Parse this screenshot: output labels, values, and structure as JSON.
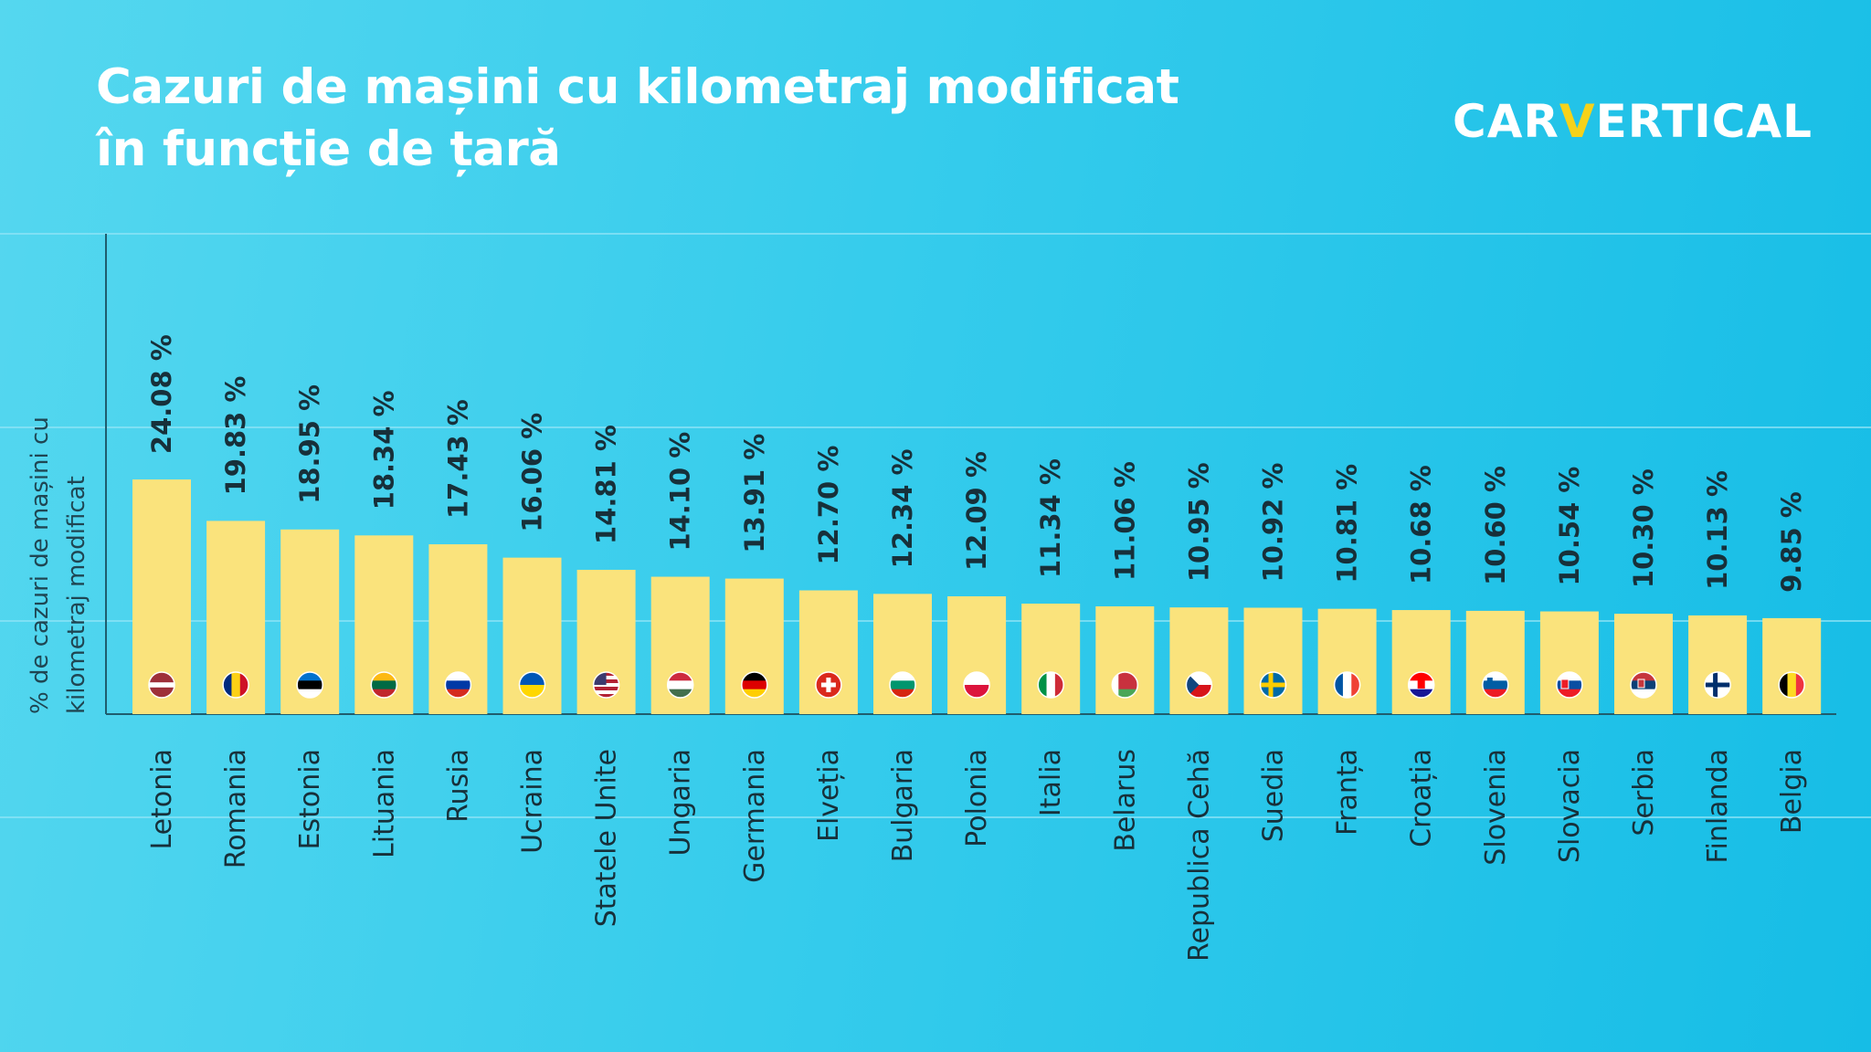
{
  "header": {
    "title_line1": "Cazuri de mașini cu kilometraj modificat",
    "title_line2": "în funcție de țară",
    "logo_left": "CAR",
    "logo_v": "V",
    "logo_right": "ERTICAL"
  },
  "colors": {
    "bar": "#fae37c",
    "background": "#36ccec",
    "logo_accent": "#f6d21a"
  },
  "chart_data": {
    "type": "bar",
    "title": "Cazuri de mașini cu kilometraj modificat în funcție de țară",
    "xlabel": "",
    "ylabel_line1": "% de cazuri de mașini cu",
    "ylabel_line2": "kilometraj modificat",
    "ylim": [
      0,
      50
    ],
    "categories": [
      "Letonia",
      "Romania",
      "Estonia",
      "Lituania",
      "Rusia",
      "Ucraina",
      "Statele Unite",
      "Ungaria",
      "Germania",
      "Elveția",
      "Bulgaria",
      "Polonia",
      "Italia",
      "Belarus",
      "Republica Cehă",
      "Suedia",
      "Franța",
      "Croația",
      "Slovenia",
      "Slovacia",
      "Serbia",
      "Finlanda",
      "Belgia"
    ],
    "values": [
      24.08,
      19.83,
      18.95,
      18.34,
      17.43,
      16.06,
      14.81,
      14.1,
      13.91,
      12.7,
      12.34,
      12.09,
      11.34,
      11.06,
      10.95,
      10.92,
      10.81,
      10.68,
      10.6,
      10.54,
      10.3,
      10.13,
      9.85
    ],
    "value_labels": [
      "24.08 %",
      "19.83 %",
      "18.95 %",
      "18.34 %",
      "17.43 %",
      "16.06 %",
      "14.81 %",
      "14.10 %",
      "13.91 %",
      "12.70 %",
      "12.34 %",
      "12.09 %",
      "11.34 %",
      "11.06 %",
      "10.95 %",
      "10.92 %",
      "10.81 %",
      "10.68 %",
      "10.60 %",
      "10.54 %",
      "10.30 %",
      "10.13 %",
      "9.85 %"
    ],
    "flag_icons": [
      "latvia-flag-icon",
      "romania-flag-icon",
      "estonia-flag-icon",
      "lithuania-flag-icon",
      "russia-flag-icon",
      "ukraine-flag-icon",
      "usa-flag-icon",
      "hungary-flag-icon",
      "germany-flag-icon",
      "switzerland-flag-icon",
      "bulgaria-flag-icon",
      "poland-flag-icon",
      "italy-flag-icon",
      "belarus-flag-icon",
      "czechia-flag-icon",
      "sweden-flag-icon",
      "france-flag-icon",
      "croatia-flag-icon",
      "slovenia-flag-icon",
      "slovakia-flag-icon",
      "serbia-flag-icon",
      "finland-flag-icon",
      "belgium-flag-icon"
    ],
    "grid": true
  }
}
